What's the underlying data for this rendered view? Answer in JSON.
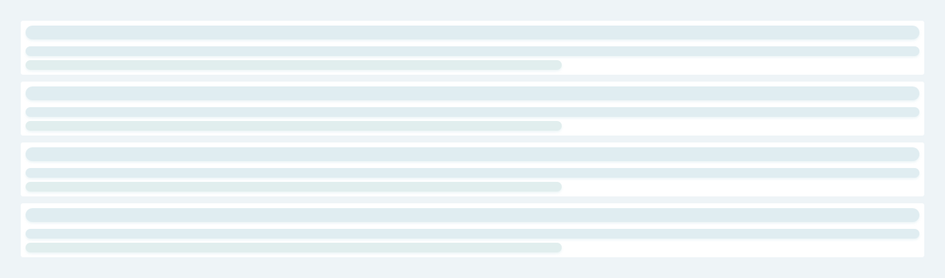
{
  "skeleton": {
    "state": "loading",
    "colors": {
      "page_background": "#eef4f7",
      "card_background": "#ffffff",
      "placeholder_bar": "#e0edf1"
    },
    "cards": [
      {
        "lines": 3
      },
      {
        "lines": 3
      },
      {
        "lines": 3
      },
      {
        "lines": 3
      }
    ]
  }
}
